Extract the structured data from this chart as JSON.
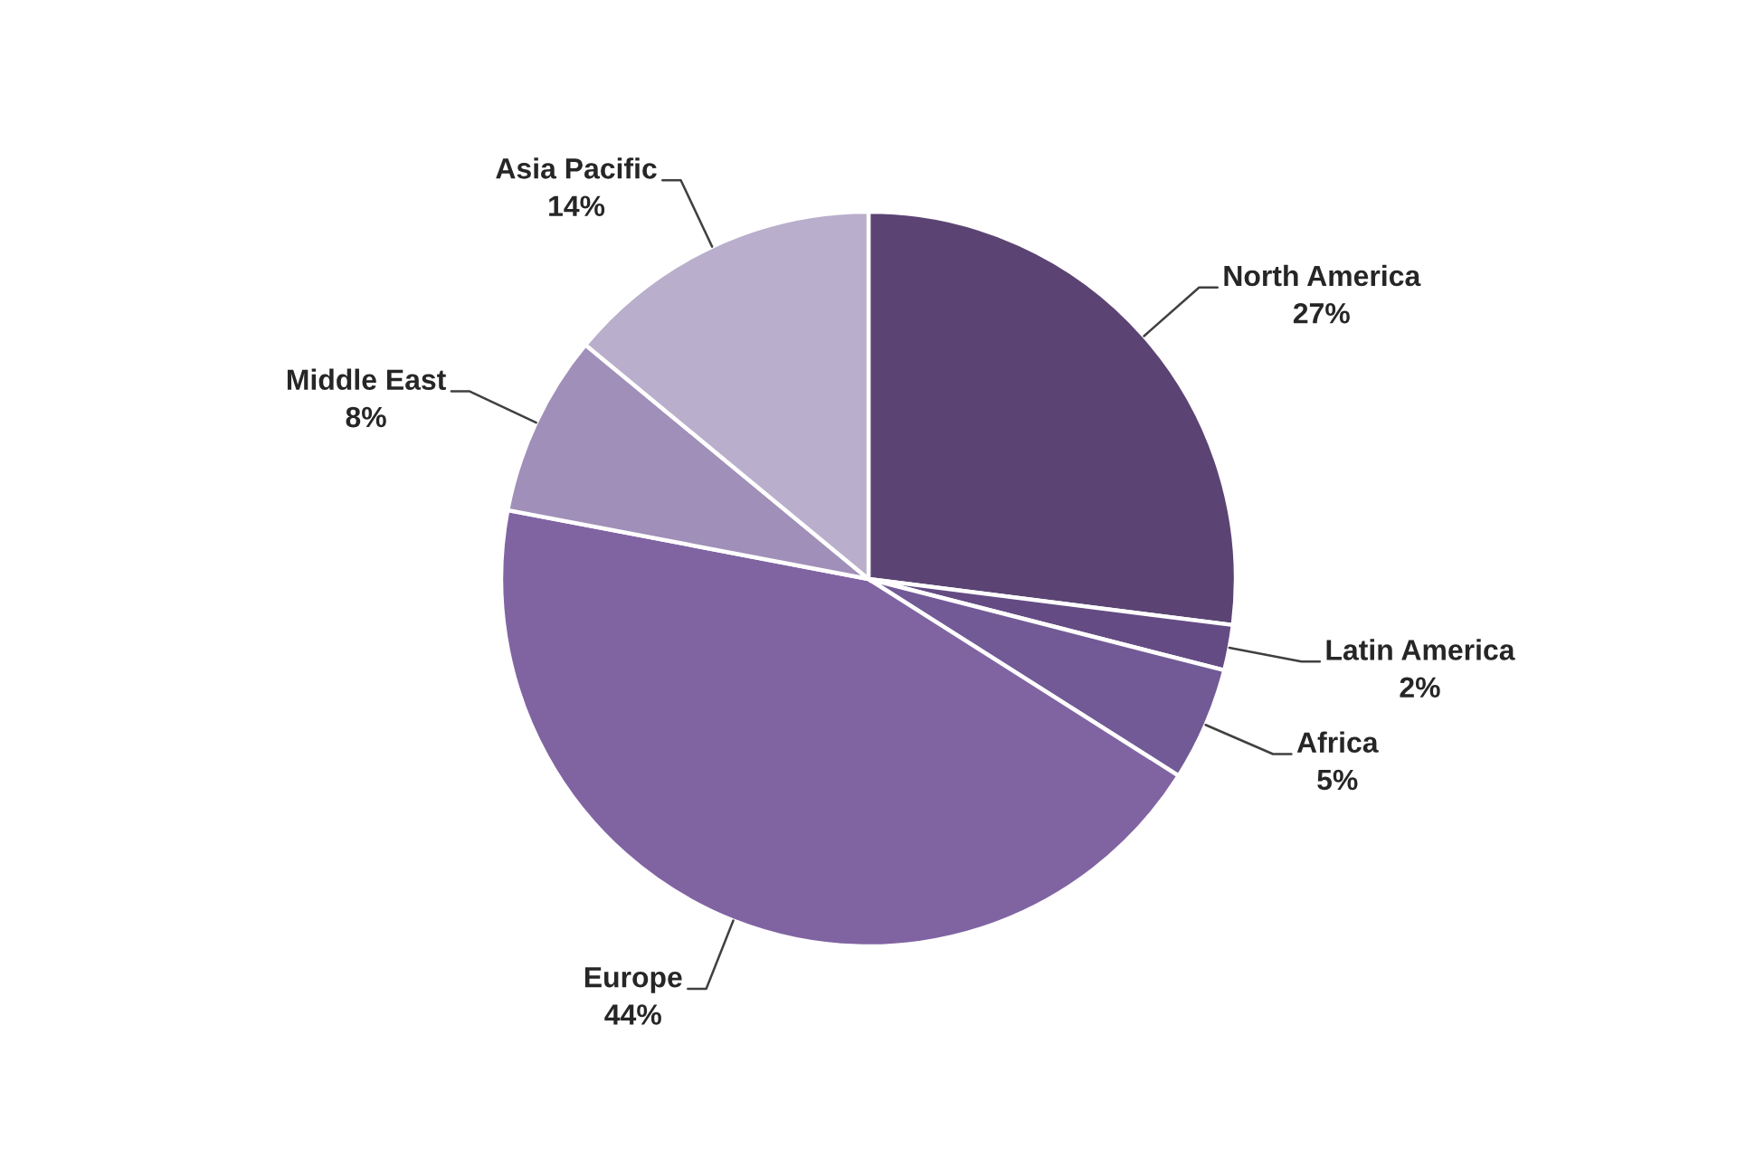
{
  "chart_data": {
    "type": "pie",
    "categories": [
      "North America",
      "Latin America",
      "Africa",
      "Europe",
      "Middle East",
      "Asia Pacific"
    ],
    "values": [
      27,
      2,
      5,
      44,
      8,
      14
    ],
    "value_labels": [
      "27%",
      "2%",
      "5%",
      "44%",
      "8%",
      "14%"
    ],
    "colors": [
      "#5b4473",
      "#654b84",
      "#725a96",
      "#8064a2",
      "#a08fb8",
      "#b9aecb"
    ]
  }
}
